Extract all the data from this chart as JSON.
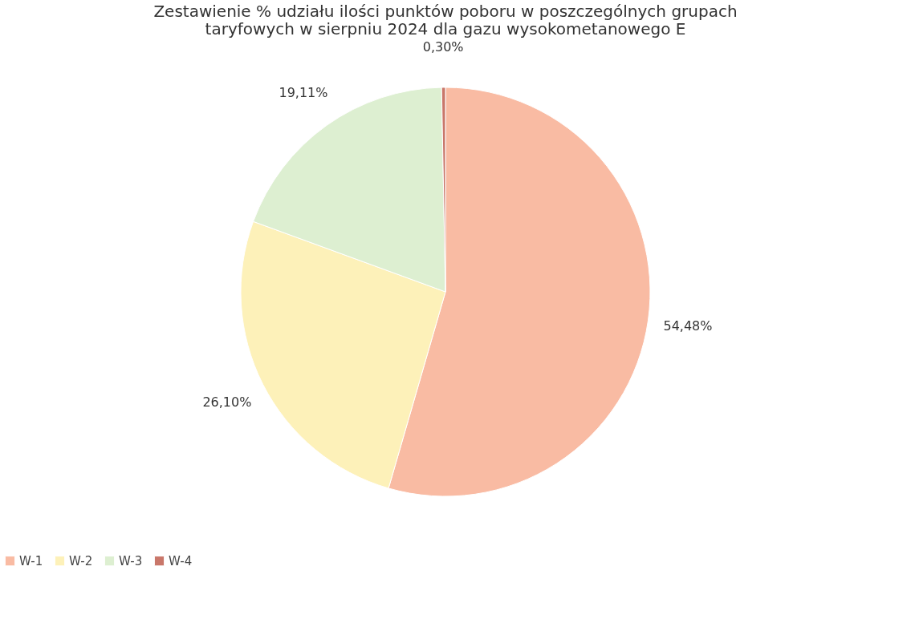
{
  "chart_data": {
    "type": "pie",
    "title": [
      "Zestawienie % udziału ilości punktów poboru w poszczególnych grupach",
      "taryfowych w sierpniu 2024 dla gazu wysokometanowego E"
    ],
    "categories": [
      "W-1",
      "W-2",
      "W-3",
      "W-4"
    ],
    "values": [
      54.48,
      26.1,
      19.11,
      0.3
    ],
    "value_labels": [
      "54,48%",
      "26,10%",
      "19,11%",
      "0,30%"
    ],
    "colors": [
      "#f9bba3",
      "#fdf1b9",
      "#ddefd1",
      "#c9776a"
    ],
    "legend": "bottom"
  }
}
